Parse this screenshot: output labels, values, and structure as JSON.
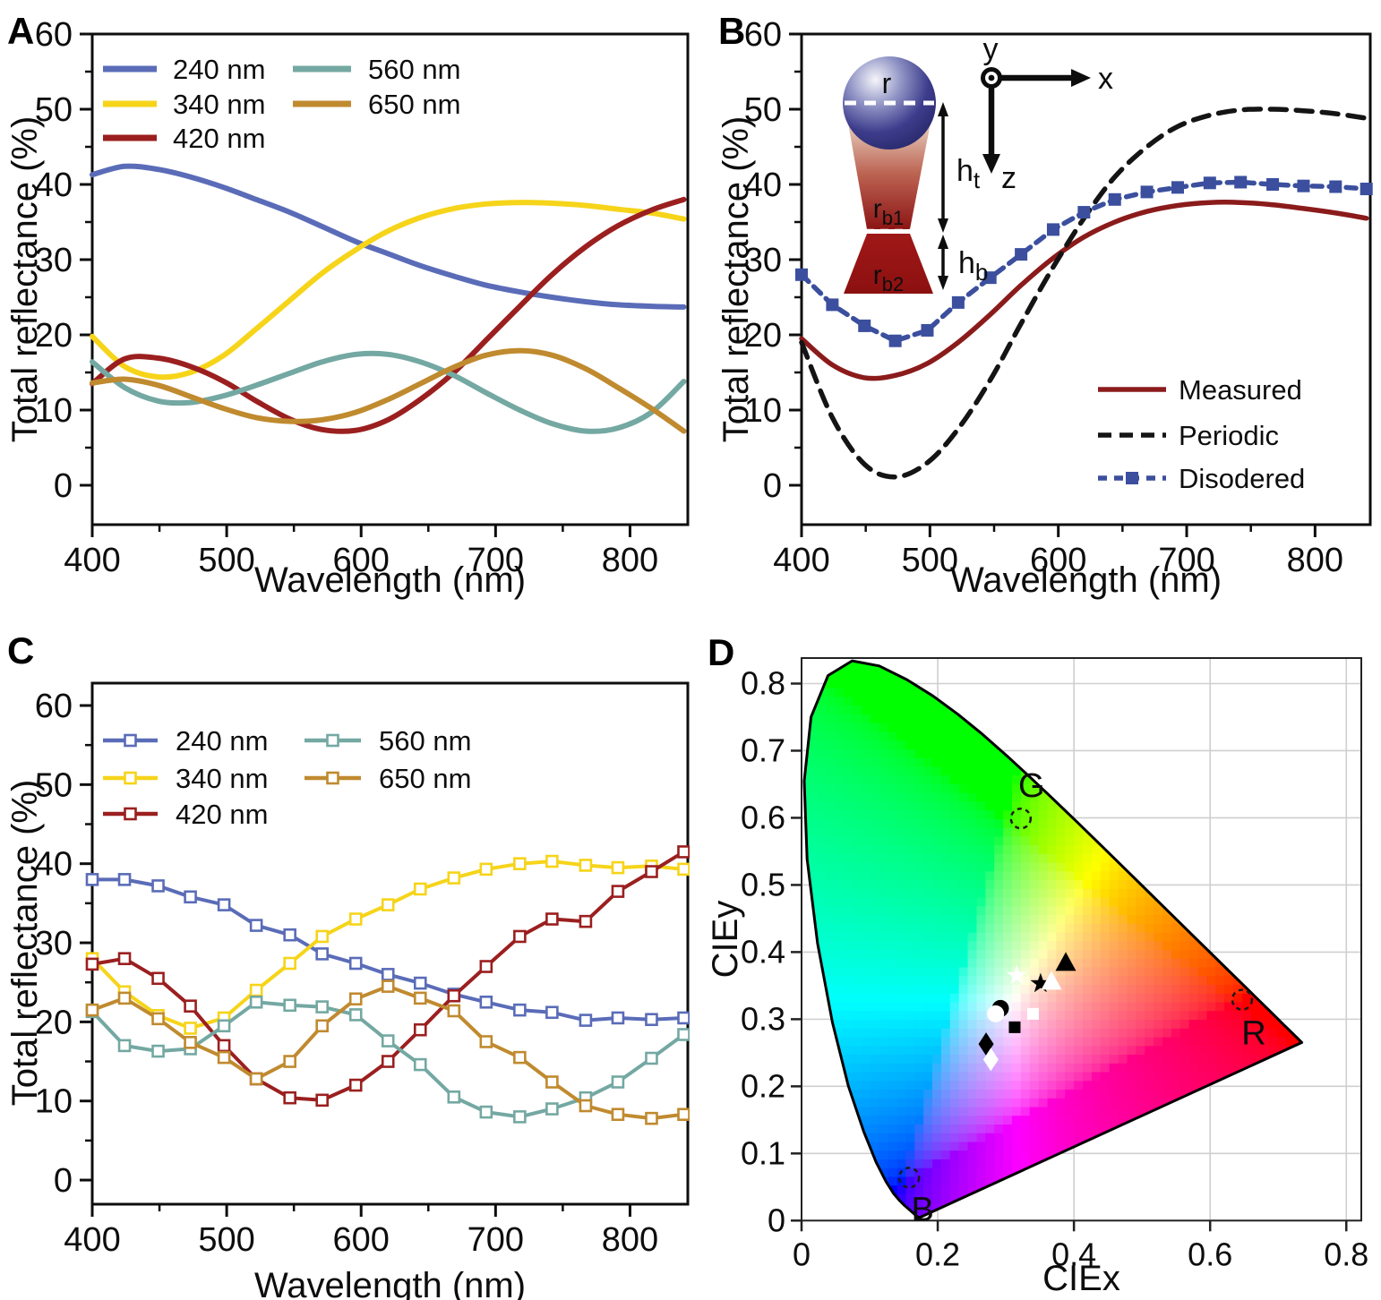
{
  "figure": {
    "panel_labels": {
      "a": "A",
      "b": "B",
      "c": "C",
      "d": "D"
    }
  },
  "chart_data": [
    {
      "id": "A",
      "panel_label": "A",
      "type": "line",
      "xlabel": "Wavelength (nm)",
      "ylabel": "Total reflectance (%)",
      "xlim": [
        400,
        843
      ],
      "ylim": [
        -5.24,
        60
      ],
      "x_ticks": [
        400,
        500,
        600,
        700,
        800
      ],
      "x_minor": [
        450,
        550,
        650,
        750
      ],
      "y_ticks": [
        0,
        10,
        20,
        30,
        40,
        50,
        60
      ],
      "y_minor": [
        5,
        15,
        25,
        35,
        45,
        55
      ],
      "grid": false,
      "legend_position": "upper-left-two-columns",
      "x": [
        400,
        424,
        449,
        473,
        498,
        522,
        547,
        571,
        596,
        620,
        644,
        669,
        693,
        718,
        742,
        767,
        791,
        816,
        840
      ],
      "series": [
        {
          "name": "240 nm",
          "color": "#5A6CB8",
          "style": "solid",
          "values": [
            41.3,
            42.4,
            42.0,
            41.0,
            39.6,
            38.0,
            36.3,
            34.4,
            32.4,
            30.8,
            29.2,
            27.8,
            26.6,
            25.7,
            25.0,
            24.4,
            24.0,
            23.8,
            23.7
          ]
        },
        {
          "name": "340 nm",
          "color": "#F6D419",
          "style": "solid",
          "values": [
            19.8,
            15.8,
            14.4,
            15.0,
            17.3,
            20.8,
            24.6,
            28.2,
            31.3,
            33.8,
            35.6,
            36.8,
            37.4,
            37.6,
            37.5,
            37.2,
            36.7,
            36.2,
            35.4
          ]
        },
        {
          "name": "420 nm",
          "color": "#9B1F1F",
          "style": "solid",
          "values": [
            13.5,
            16.8,
            16.9,
            15.8,
            13.8,
            11.2,
            8.8,
            7.4,
            7.3,
            8.7,
            11.4,
            15.0,
            19.3,
            23.8,
            28.0,
            31.7,
            34.5,
            36.6,
            38.0
          ]
        },
        {
          "name": "560 nm",
          "color": "#74A8A2",
          "style": "solid",
          "values": [
            16.4,
            13.0,
            11.2,
            11.0,
            11.9,
            13.3,
            14.9,
            16.4,
            17.4,
            17.4,
            16.4,
            14.6,
            12.3,
            10.0,
            8.2,
            7.2,
            7.6,
            9.7,
            13.8
          ]
        },
        {
          "name": "650 nm",
          "color": "#C08A2F",
          "style": "solid",
          "values": [
            13.6,
            14.1,
            13.3,
            11.8,
            10.2,
            9.0,
            8.5,
            8.7,
            9.7,
            11.4,
            13.5,
            15.7,
            17.3,
            17.9,
            17.3,
            15.5,
            13.0,
            10.2,
            7.2
          ]
        }
      ]
    },
    {
      "id": "B",
      "panel_label": "B",
      "type": "line",
      "xlabel": "Wavelength (nm)",
      "ylabel": "Total reflectance (%)",
      "xlim": [
        400,
        843
      ],
      "ylim": [
        -5.24,
        60
      ],
      "x_ticks": [
        400,
        500,
        600,
        700,
        800
      ],
      "x_minor": [
        450,
        550,
        650,
        750
      ],
      "y_ticks": [
        0,
        10,
        20,
        30,
        40,
        50,
        60
      ],
      "y_minor": [
        5,
        15,
        25,
        35,
        45,
        55
      ],
      "grid": false,
      "legend_position": "center-right",
      "x": [
        400,
        424,
        449,
        473,
        498,
        522,
        547,
        571,
        596,
        620,
        644,
        669,
        693,
        718,
        742,
        767,
        791,
        816,
        840
      ],
      "series": [
        {
          "name": "Measured",
          "color": "#8B1B1B",
          "style": "solid",
          "values": [
            19.5,
            16.0,
            14.3,
            14.6,
            16.2,
            19.0,
            22.7,
            26.6,
            30.2,
            33.0,
            35.0,
            36.4,
            37.2,
            37.6,
            37.6,
            37.3,
            36.8,
            36.2,
            35.5
          ]
        },
        {
          "name": "Periodic",
          "color": "#141414",
          "style": "dashed",
          "values": [
            19.0,
            9.0,
            2.8,
            1.1,
            3.0,
            7.5,
            14.0,
            21.5,
            29.0,
            35.5,
            41.0,
            45.0,
            47.7,
            49.2,
            49.9,
            50.0,
            49.8,
            49.4,
            48.8
          ]
        },
        {
          "name": "Disodered",
          "color": "#3B4F9E",
          "style": "dashed",
          "marker": "filled-square",
          "values": [
            28.0,
            24.0,
            21.2,
            19.2,
            20.6,
            24.3,
            27.6,
            30.7,
            34.0,
            36.3,
            38.0,
            39.0,
            39.6,
            40.2,
            40.3,
            40.0,
            39.8,
            39.7,
            39.4
          ]
        }
      ],
      "inset": {
        "sphere_label": "r",
        "top_radius_label": {
          "base": "r",
          "sub": "b1"
        },
        "bottom_radius_label": {
          "base": "r",
          "sub": "b2"
        },
        "top_height_label": {
          "base": "h",
          "sub": "t"
        },
        "bottom_height_label": {
          "base": "h",
          "sub": "b"
        },
        "axis_x_label": "x",
        "axis_y_label": "y",
        "axis_z_label": "z",
        "sphere_color": "#2B2B6E",
        "cone_top_color": "#EBD8C8",
        "cone_bottom_color": "#8C1515",
        "base_color": "#A01818"
      }
    },
    {
      "id": "C",
      "panel_label": "C",
      "type": "line",
      "xlabel": "Wavelength (nm)",
      "ylabel": "Total reflectance (%)",
      "xlim": [
        400,
        843
      ],
      "ylim": [
        -3.05,
        62.83
      ],
      "x_ticks": [
        400,
        500,
        600,
        700,
        800
      ],
      "x_minor": [
        450,
        550,
        650,
        750
      ],
      "y_ticks": [
        0,
        10,
        20,
        30,
        40,
        50,
        60
      ],
      "y_minor": [
        5,
        15,
        25,
        35,
        45,
        55
      ],
      "grid": false,
      "legend_position": "upper-left-two-columns",
      "x": [
        400,
        424,
        449,
        473,
        498,
        522,
        547,
        571,
        596,
        620,
        644,
        669,
        693,
        718,
        742,
        767,
        791,
        816,
        840
      ],
      "series": [
        {
          "name": "240 nm",
          "color": "#5A6CB8",
          "style": "solid",
          "marker": "open-square",
          "values": [
            38.0,
            38.0,
            37.2,
            35.8,
            34.8,
            32.2,
            31.0,
            28.6,
            27.4,
            26.0,
            24.9,
            23.5,
            22.5,
            21.5,
            21.2,
            20.2,
            20.5,
            20.3,
            20.5
          ]
        },
        {
          "name": "340 nm",
          "color": "#F6D419",
          "style": "solid",
          "marker": "open-square",
          "values": [
            28.0,
            23.8,
            20.8,
            19.2,
            20.5,
            24.0,
            27.4,
            30.8,
            33.0,
            34.8,
            36.8,
            38.2,
            39.3,
            40.0,
            40.3,
            39.8,
            39.5,
            39.7,
            39.3
          ]
        },
        {
          "name": "420 nm",
          "color": "#9B1F1F",
          "style": "solid",
          "marker": "open-square",
          "values": [
            27.3,
            28.0,
            25.5,
            22.0,
            17.0,
            12.8,
            10.4,
            10.1,
            12.0,
            15.0,
            19.0,
            23.3,
            27.0,
            30.8,
            33.0,
            32.7,
            36.5,
            39.0,
            41.5
          ]
        },
        {
          "name": "560 nm",
          "color": "#74A8A2",
          "style": "solid",
          "marker": "open-square",
          "values": [
            21.3,
            17.0,
            16.3,
            16.6,
            19.5,
            22.5,
            22.1,
            21.9,
            20.9,
            17.6,
            14.6,
            10.5,
            8.6,
            8.0,
            9.0,
            10.4,
            12.4,
            15.4,
            18.4
          ]
        },
        {
          "name": "650 nm",
          "color": "#C08A2F",
          "style": "solid",
          "marker": "open-square",
          "values": [
            21.5,
            23.0,
            20.4,
            17.4,
            15.5,
            12.8,
            15.0,
            19.5,
            22.9,
            24.5,
            23.0,
            21.4,
            17.5,
            15.5,
            12.4,
            9.4,
            8.3,
            7.8,
            8.3
          ]
        }
      ]
    },
    {
      "id": "D",
      "panel_label": "D",
      "type": "scatter",
      "subtype": "cie-1931-chromaticity",
      "xlabel": "CIEx",
      "ylabel": "CIEy",
      "xlim": [
        0,
        0.822
      ],
      "ylim": [
        0,
        0.838
      ],
      "x_ticks": [
        0,
        0.2,
        0.4,
        0.6,
        0.8
      ],
      "y_ticks": [
        0,
        0.1,
        0.2,
        0.3,
        0.4,
        0.5,
        0.6,
        0.7,
        0.8
      ],
      "grid": true,
      "grid_x": [
        0.2,
        0.4,
        0.6,
        0.8
      ],
      "grid_y": [
        0.1,
        0.2,
        0.3,
        0.4,
        0.5,
        0.6,
        0.7,
        0.8
      ],
      "markers": [
        {
          "shape": "circle",
          "fill": "black",
          "x": 0.292,
          "y": 0.316
        },
        {
          "shape": "circle",
          "fill": "white",
          "x": 0.285,
          "y": 0.308
        },
        {
          "shape": "star",
          "fill": "white",
          "x": 0.316,
          "y": 0.365
        },
        {
          "shape": "star",
          "fill": "black",
          "x": 0.351,
          "y": 0.353
        },
        {
          "shape": "triangle",
          "fill": "white",
          "x": 0.367,
          "y": 0.356
        },
        {
          "shape": "triangle",
          "fill": "black",
          "x": 0.388,
          "y": 0.384
        },
        {
          "shape": "square",
          "fill": "white",
          "x": 0.34,
          "y": 0.308
        },
        {
          "shape": "square",
          "fill": "black",
          "x": 0.313,
          "y": 0.288
        },
        {
          "shape": "diamond",
          "fill": "black",
          "x": 0.271,
          "y": 0.263
        },
        {
          "shape": "diamond",
          "fill": "white",
          "x": 0.278,
          "y": 0.24
        }
      ],
      "reference_points": [
        {
          "label": "G",
          "x": 0.322,
          "y": 0.599
        },
        {
          "label": "R",
          "x": 0.647,
          "y": 0.329
        },
        {
          "label": "B",
          "x": 0.158,
          "y": 0.064
        }
      ]
    }
  ]
}
